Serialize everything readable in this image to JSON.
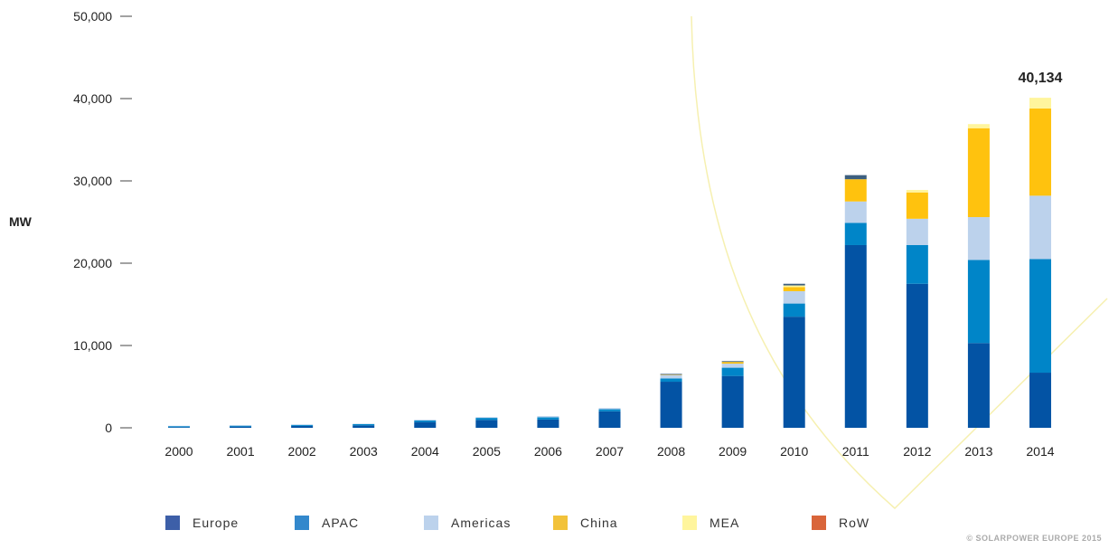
{
  "chart_data": {
    "type": "bar",
    "stacked": true,
    "title": "",
    "xlabel": "",
    "ylabel": "MW",
    "ylim": [
      0,
      50000
    ],
    "yticks": [
      0,
      10000,
      20000,
      30000,
      40000,
      50000
    ],
    "ytick_labels": [
      "0",
      "10,000",
      "20,000",
      "30,000",
      "40,000",
      "50,000"
    ],
    "grid": false,
    "legend_position": "bottom",
    "categories": [
      "2000",
      "2001",
      "2002",
      "2003",
      "2004",
      "2005",
      "2006",
      "2007",
      "2008",
      "2009",
      "2010",
      "2011",
      "2012",
      "2013",
      "2014"
    ],
    "series": [
      {
        "name": "Europe",
        "color": "#0353a4",
        "values": [
          80,
          150,
          230,
          300,
          700,
          950,
          1000,
          2000,
          5600,
          6300,
          13500,
          22200,
          17500,
          10300,
          6700
        ]
      },
      {
        "name": "APAC",
        "color": "#0085c8",
        "values": [
          130,
          120,
          130,
          150,
          200,
          250,
          270,
          250,
          400,
          1000,
          1600,
          2700,
          4700,
          10100,
          13800
        ]
      },
      {
        "name": "Americas",
        "color": "#bcd2ec",
        "values": [
          30,
          30,
          40,
          50,
          80,
          100,
          150,
          150,
          400,
          500,
          1500,
          2600,
          3200,
          5200,
          7700
        ]
      },
      {
        "name": "China",
        "color": "#ffc20e",
        "values": [
          0,
          0,
          0,
          0,
          0,
          0,
          0,
          0,
          50,
          200,
          500,
          2700,
          3200,
          10800,
          10600
        ]
      },
      {
        "name": "MEA",
        "color": "#fff59d",
        "values": [
          0,
          0,
          0,
          0,
          0,
          0,
          0,
          0,
          0,
          0,
          200,
          0,
          300,
          500,
          1300
        ]
      },
      {
        "name": "RoW",
        "color": "#e2622e",
        "values": [
          0,
          0,
          0,
          0,
          0,
          0,
          0,
          0,
          0,
          0,
          0,
          0,
          0,
          0,
          0
        ]
      }
    ],
    "extra_segments": [
      {
        "category": "2010",
        "color": "#3d5f7f",
        "value": 200
      },
      {
        "category": "2011",
        "color": "#3d5f7f",
        "value": 500
      },
      {
        "category": "2008",
        "color": "#3d5f7f",
        "value": 100
      },
      {
        "category": "2009",
        "color": "#3d5f7f",
        "value": 100
      }
    ],
    "annotations": [
      {
        "category": "2014",
        "text": "40,134"
      }
    ],
    "legend_swatch_colors": {
      "Europe": "#3d5fa8",
      "APAC": "#3388cc",
      "Americas": "#bcd2ec",
      "China": "#f2c23a",
      "MEA": "#fff59d",
      "RoW": "#d9653a"
    },
    "decoration_color": "#f6f0b0"
  },
  "copyright": "© SOLARPOWER EUROPE 2015"
}
